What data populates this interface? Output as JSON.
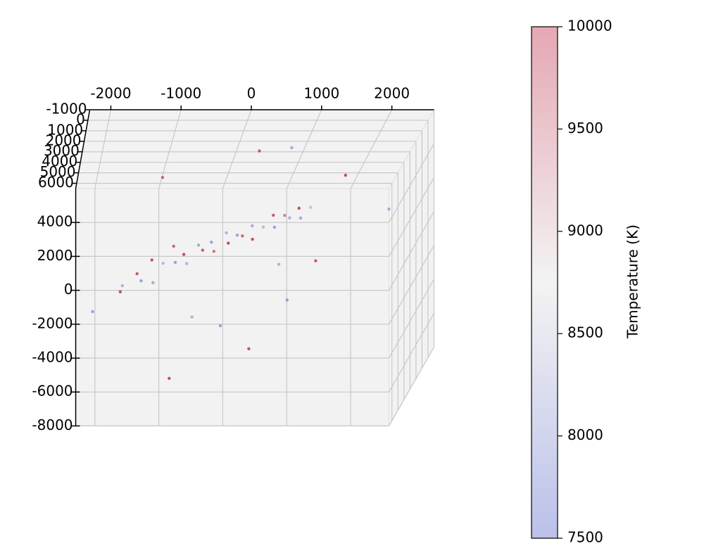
{
  "chart_data": {
    "type": "scatter3d",
    "xlim": [
      -2300,
      2600
    ],
    "xticks": [
      -2000,
      -1000,
      0,
      1000,
      2000
    ],
    "ylim": [
      -1000,
      6500
    ],
    "yticks": [
      -1000,
      0,
      1000,
      2000,
      3000,
      4000,
      5000,
      6000
    ],
    "zlim": [
      -8000,
      6000
    ],
    "zticks": [
      -8000,
      -6000,
      -4000,
      -2000,
      0,
      2000,
      4000
    ],
    "grid": true,
    "colormap": "coolwarm",
    "points": {
      "x": [
        -1700,
        -1500,
        -1400,
        -1300,
        -1200,
        -1100,
        -1000,
        -900,
        -800,
        -700,
        -600,
        -500,
        -400,
        -300,
        -200,
        -100,
        0,
        100,
        200,
        300,
        400,
        500,
        600,
        700,
        800,
        900,
        1000,
        1100,
        -1800,
        -2100,
        -600,
        200,
        900,
        1500,
        -1200,
        300,
        -300,
        700,
        1300,
        2200,
        -900,
        500
      ],
      "y": [
        3000,
        2500,
        3500,
        2000,
        4000,
        2800,
        1500,
        3200,
        2600,
        3800,
        2200,
        3000,
        2400,
        3600,
        2000,
        3300,
        2700,
        3100,
        2300,
        3900,
        2900,
        2100,
        3400,
        2600,
        3000,
        2400,
        3500,
        2800,
        1000,
        4500,
        4200,
        500,
        5000,
        1200,
        600,
        4800,
        1800,
        1000,
        4500,
        2000,
        5200,
        800
      ],
      "z": [
        -1900,
        -1500,
        -1300,
        -1000,
        -1100,
        -700,
        -500,
        -400,
        -300,
        -100,
        0,
        200,
        300,
        500,
        600,
        800,
        900,
        1100,
        1200,
        1400,
        1500,
        1700,
        1800,
        2000,
        2100,
        2300,
        2400,
        2600,
        -3500,
        -2500,
        -3000,
        4500,
        -1500,
        3500,
        3000,
        -4500,
        -5000,
        5000,
        500,
        2000,
        -6000,
        -2000
      ],
      "c": [
        8200,
        9800,
        8000,
        9900,
        8100,
        8300,
        9700,
        8000,
        9900,
        8200,
        8100,
        9800,
        8000,
        9600,
        8200,
        9900,
        8000,
        9700,
        8100,
        9900,
        8300,
        9800,
        8000,
        9500,
        8200,
        9900,
        8100,
        8400,
        9900,
        8000,
        8200,
        9800,
        8000,
        9900,
        9700,
        9900,
        8000,
        8100,
        9800,
        8100,
        9900,
        8200
      ]
    },
    "colorbar": {
      "label": "Temperature (K)",
      "clim": [
        7500,
        10000
      ],
      "ticks": [
        7500,
        8000,
        8500,
        9000,
        9500,
        10000
      ]
    }
  }
}
